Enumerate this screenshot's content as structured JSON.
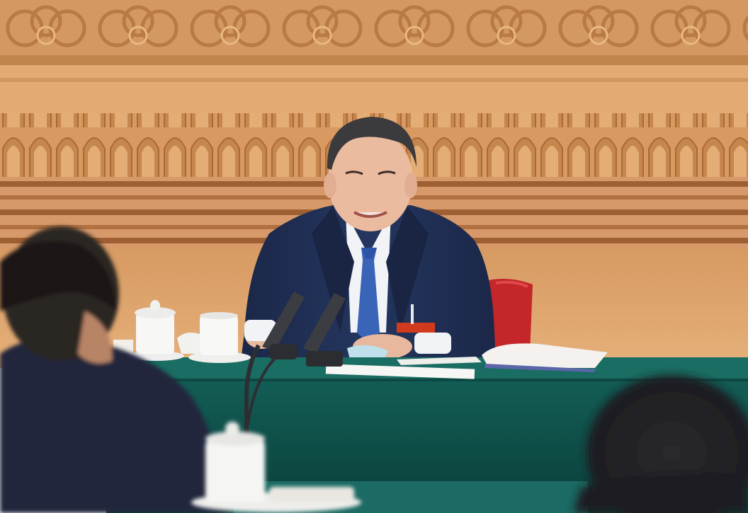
{
  "image": {
    "description_colors": {
      "wood_light": "#e2ac72",
      "wood_mid": "#c98b52",
      "wood_dark": "#a86a3a",
      "panel": "#dca06c",
      "table_green": "#0f4f47",
      "suit_navy": "#1f2f55",
      "tie_blue": "#3a64b8",
      "chair_red": "#c4262a"
    }
  }
}
